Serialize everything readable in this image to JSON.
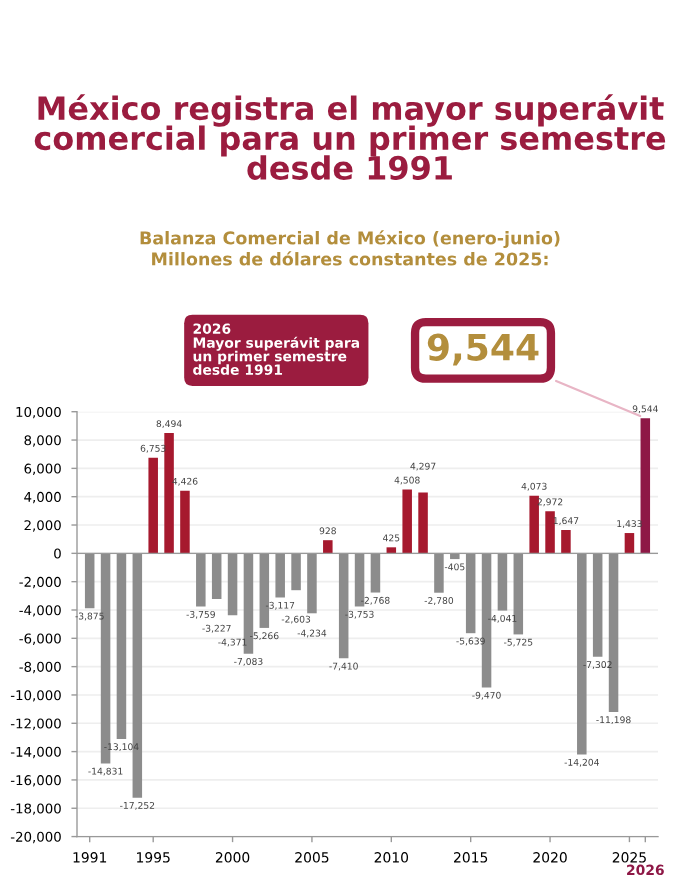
{
  "chart_data": {
    "type": "bar",
    "title": "México registra el mayor superávit comercial para un primer semestre desde 1991",
    "subtitle": "Balanza Comercial de México (enero-junio)\nMillones de dólares constantes de 2025:",
    "categories": [
      "1991",
      null,
      null,
      null,
      "1995",
      null,
      null,
      null,
      null,
      "2000",
      null,
      null,
      null,
      null,
      "2005",
      null,
      null,
      null,
      null,
      "2010",
      null,
      null,
      null,
      null,
      "2015",
      null,
      null,
      null,
      null,
      "2020",
      null,
      null,
      null,
      null,
      "2025",
      "2026"
    ],
    "values": [
      -3875,
      -14831,
      -13104,
      -17252,
      6753,
      8494,
      4426,
      -3759,
      -3227,
      -4371,
      -7083,
      -5266,
      -3117,
      -2603,
      -4234,
      928,
      -7410,
      -3753,
      -2768,
      425,
      4508,
      4297,
      -2780,
      -405,
      -5639,
      -9470,
      -4041,
      -5725,
      4073,
      2972,
      1647,
      -14204,
      -7302,
      -11198,
      1433,
      9544
    ],
    "colors": [
      "#8c8c8c",
      "#8c8c8c",
      "#8c8c8c",
      "#8c8c8c",
      "#a6192e",
      "#a6192e",
      "#a6192e",
      "#8c8c8c",
      "#8c8c8c",
      "#8c8c8c",
      "#8c8c8c",
      "#8c8c8c",
      "#8c8c8c",
      "#8c8c8c",
      "#8c8c8c",
      "#a6192e",
      "#8c8c8c",
      "#8c8c8c",
      "#8c8c8c",
      "#a6192e",
      "#a6192e",
      "#a6192e",
      "#8c8c8c",
      "#8c8c8c",
      "#8c8c8c",
      "#8c8c8c",
      "#8c8c8c",
      "#8c8c8c",
      "#a6192e",
      "#a6192e",
      "#a6192e",
      "#8c8c8c",
      "#8c8c8c",
      "#8c8c8c",
      "#a6192e",
      "#8e1846"
    ],
    "value_labels": [
      "-3,875",
      "-14,831",
      "-13,104",
      "-17,252",
      "6,753",
      "8,494",
      "4,426",
      "-3,759",
      "-3,227",
      "-4,371",
      "-7,083",
      "-5,266",
      "-3,117",
      "-2,603",
      "-4,234",
      "928",
      "-7,410",
      "-3,753",
      "-2,768",
      "425",
      "4,508",
      "4,297",
      "-2,780",
      "-405",
      "-5,639",
      "-9,470",
      "-4,041",
      "-5,725",
      "4,073",
      "2,972",
      "1,647",
      "-14,204",
      "-7,302",
      "-11,198",
      "1,433",
      "9,544"
    ],
    "ylim": [
      -20000,
      10000
    ],
    "yticks": [
      {
        "value": -20000,
        "label": "-20,000"
      },
      {
        "value": -18000,
        "label": "-18,000"
      },
      {
        "value": -16000,
        "label": "-16,000"
      },
      {
        "value": -14000,
        "label": "-14,000"
      },
      {
        "value": -12000,
        "label": "-12,000"
      },
      {
        "value": -10000,
        "label": "-10,000"
      },
      {
        "value": -8000,
        "label": "-8,000"
      },
      {
        "value": -6000,
        "label": "-6,000"
      },
      {
        "value": -4000,
        "label": "-4,000"
      },
      {
        "value": -2000,
        "label": "-2,000"
      },
      {
        "value": 0,
        "label": "0"
      },
      {
        "value": 2000,
        "label": "2,000"
      },
      {
        "value": 4000,
        "label": "4,000"
      },
      {
        "value": 6000,
        "label": "6,000"
      },
      {
        "value": 8000,
        "label": "8,000"
      },
      {
        "value": 10000,
        "label": "10,000"
      }
    ],
    "grid": "y",
    "legend": false,
    "annotations": [
      "2026\nMayor superávit para\nun primer semestre\ndesde 1991",
      {
        "text": "9,544",
        "x": "2026",
        "y": 9544
      }
    ]
  }
}
